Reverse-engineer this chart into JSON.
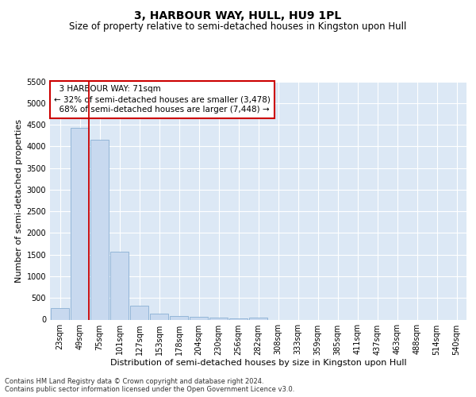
{
  "title": "3, HARBOUR WAY, HULL, HU9 1PL",
  "subtitle": "Size of property relative to semi-detached houses in Kingston upon Hull",
  "xlabel": "Distribution of semi-detached houses by size in Kingston upon Hull",
  "ylabel": "Number of semi-detached properties",
  "footer_line1": "Contains HM Land Registry data © Crown copyright and database right 2024.",
  "footer_line2": "Contains public sector information licensed under the Open Government Licence v3.0.",
  "bar_labels": [
    "23sqm",
    "49sqm",
    "75sqm",
    "101sqm",
    "127sqm",
    "153sqm",
    "178sqm",
    "204sqm",
    "230sqm",
    "256sqm",
    "282sqm",
    "308sqm",
    "333sqm",
    "359sqm",
    "385sqm",
    "411sqm",
    "437sqm",
    "463sqm",
    "488sqm",
    "514sqm",
    "540sqm"
  ],
  "bar_values": [
    275,
    4420,
    4160,
    1560,
    320,
    130,
    75,
    60,
    45,
    30,
    55,
    0,
    0,
    0,
    0,
    0,
    0,
    0,
    0,
    0,
    0
  ],
  "bar_color": "#c8d9ef",
  "bar_edge_color": "#8ab0d4",
  "ylim": [
    0,
    5500
  ],
  "yticks": [
    0,
    500,
    1000,
    1500,
    2000,
    2500,
    3000,
    3500,
    4000,
    4500,
    5000,
    5500
  ],
  "property_label": "3 HARBOUR WAY: 71sqm",
  "pct_smaller": 32,
  "count_smaller": "3,478",
  "pct_larger": 68,
  "count_larger": "7,448",
  "vline_color": "#cc0000",
  "annotation_box_facecolor": "#ffffff",
  "annotation_box_edgecolor": "#cc0000",
  "background_color": "#dce8f5",
  "grid_color": "#ffffff",
  "title_fontsize": 10,
  "subtitle_fontsize": 8.5,
  "axis_label_fontsize": 8,
  "tick_fontsize": 7,
  "annotation_fontsize": 7.5,
  "footer_fontsize": 6
}
